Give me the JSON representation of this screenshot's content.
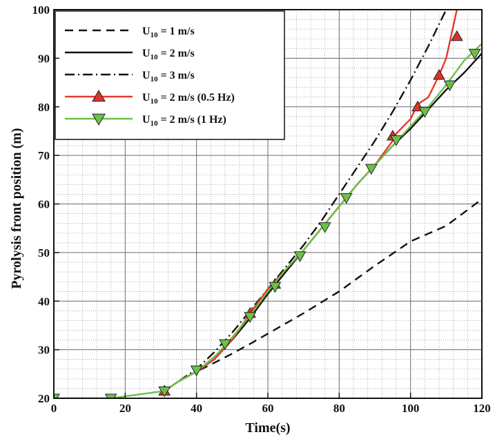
{
  "chart_data": {
    "type": "line",
    "xlabel": "Time(s)",
    "ylabel": "Pyrolysis front position (m)",
    "xlim": [
      0,
      120
    ],
    "ylim": [
      20,
      100
    ],
    "x_major_ticks": [
      0,
      20,
      40,
      60,
      80,
      100,
      120
    ],
    "y_major_ticks": [
      20,
      30,
      40,
      50,
      60,
      70,
      80,
      90,
      100
    ],
    "grid": "major solid, minor dotted",
    "legend_position": "top-left",
    "series": [
      {
        "name": "U10 = 1 m/s",
        "legend_main": "U",
        "legend_sub": "10",
        "legend_rest": " = 1 m/s",
        "color": "#111111",
        "dash": "12,8",
        "marker": "none",
        "x": [
          31,
          35,
          40,
          45,
          50,
          55,
          60,
          70,
          80,
          90,
          100,
          110,
          120
        ],
        "y": [
          21.5,
          23.5,
          25.5,
          27.3,
          29.2,
          31.2,
          33.3,
          37.5,
          42.0,
          47.3,
          52.3,
          55.5,
          61.0
        ]
      },
      {
        "name": "U10 = 2 m/s",
        "legend_main": "U",
        "legend_sub": "10",
        "legend_rest": " = 2 m/s",
        "color": "#111111",
        "dash": "",
        "marker": "none",
        "x": [
          31,
          35,
          40,
          45,
          50,
          55,
          60,
          65,
          70,
          75,
          80,
          85,
          90,
          95,
          100,
          105,
          110,
          115,
          120
        ],
        "y": [
          21.5,
          23.5,
          25.5,
          28.5,
          32.0,
          36.5,
          41.5,
          46.0,
          50.5,
          55.0,
          59.5,
          64.0,
          68.0,
          72.0,
          75.5,
          79.5,
          83.5,
          87.0,
          91.0
        ]
      },
      {
        "name": "U10 = 3 m/s",
        "legend_main": "U",
        "legend_sub": "10",
        "legend_rest": " = 3 m/s",
        "color": "#111111",
        "dash": "14,5,2,5",
        "marker": "none",
        "x": [
          31,
          35,
          40,
          45,
          50,
          55,
          60,
          65,
          70,
          75,
          80,
          85,
          90,
          95,
          100,
          105,
          110
        ],
        "y": [
          21.5,
          23.5,
          26.0,
          29.5,
          33.5,
          38.0,
          42.5,
          47.0,
          51.5,
          56.5,
          62.0,
          67.5,
          73.0,
          79.0,
          85.5,
          92.5,
          100.0
        ]
      },
      {
        "name": "U10 = 2 m/s (0.5 Hz)",
        "legend_main": "U",
        "legend_sub": "10",
        "legend_rest": " = 2 m/s (0.5 Hz)",
        "color": "#e23a2e",
        "marker_fill": "#d9342b",
        "dash": "",
        "marker": "triangle-up",
        "x": [
          31,
          35,
          40,
          45,
          50,
          55,
          60,
          65,
          70,
          75,
          80,
          85,
          90,
          95,
          96,
          100,
          102,
          105,
          108,
          110,
          113
        ],
        "y": [
          21.5,
          23.5,
          25.5,
          28.0,
          32.0,
          37.5,
          42.5,
          46.5,
          50.5,
          55.0,
          59.5,
          64.0,
          68.0,
          73.0,
          74.5,
          77.5,
          80.5,
          82.0,
          86.5,
          90.0,
          100.0
        ],
        "markers_x": [
          31,
          55,
          62,
          95,
          102,
          108,
          113
        ],
        "markers_y": [
          21.5,
          37.5,
          43.5,
          74.0,
          80.0,
          86.5,
          94.5
        ]
      },
      {
        "name": "U10 = 2 m/s (1 Hz)",
        "legend_main": "U",
        "legend_sub": "10",
        "legend_rest": " = 2 m/s (1 Hz)",
        "color": "#6cc04a",
        "marker_fill": "#6cc04a",
        "dash": "",
        "marker": "triangle-down",
        "x": [
          0,
          16,
          31,
          35,
          40,
          45,
          50,
          55,
          60,
          65,
          70,
          75,
          80,
          85,
          90,
          95,
          100,
          105,
          110,
          115,
          120
        ],
        "y": [
          20.0,
          20.0,
          21.5,
          23.5,
          25.5,
          28.5,
          32.5,
          37.0,
          42.0,
          46.5,
          50.5,
          55.0,
          59.5,
          64.0,
          68.0,
          72.0,
          76.0,
          80.0,
          84.5,
          89.5,
          93.0
        ],
        "markers_x": [
          0,
          16,
          31,
          40,
          48,
          55,
          62,
          69,
          76,
          82,
          89,
          96,
          104,
          111,
          118
        ],
        "markers_y": [
          20.0,
          20.0,
          21.5,
          25.8,
          31.2,
          36.8,
          43.0,
          49.3,
          55.3,
          61.3,
          67.3,
          73.2,
          79.0,
          84.5,
          91.0
        ]
      }
    ]
  }
}
